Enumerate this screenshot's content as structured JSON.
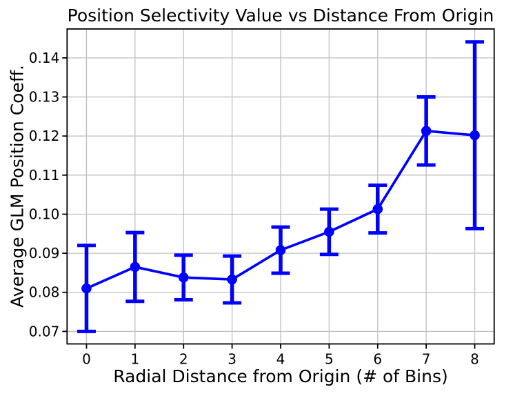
{
  "chart_data": {
    "type": "line",
    "title": "Position Selectivity Value vs Distance From Origin",
    "xlabel": "Radial Distance from Origin (# of Bins)",
    "ylabel": "Average GLM Position Coeff.",
    "x": [
      0,
      1,
      2,
      3,
      4,
      5,
      6,
      7,
      8
    ],
    "y": [
      0.081,
      0.0865,
      0.0838,
      0.0833,
      0.0908,
      0.0955,
      0.1013,
      0.1213,
      0.1202
    ],
    "yerr": [
      0.011,
      0.0088,
      0.0057,
      0.006,
      0.0059,
      0.0058,
      0.0061,
      0.0087,
      0.0239
    ],
    "xticks": [
      0,
      1,
      2,
      3,
      4,
      5,
      6,
      7,
      8
    ],
    "yticks": [
      0.07,
      0.08,
      0.09,
      0.1,
      0.11,
      0.12,
      0.13,
      0.14
    ],
    "xlim": [
      -0.4,
      8.4
    ],
    "ylim": [
      0.0668,
      0.1474
    ],
    "grid": true,
    "legend": "none",
    "marker": "o",
    "colors": {
      "line": "#0000ff",
      "marker": "#0000ff",
      "errorbar": "#0000ff",
      "grid": "#c0c0c0",
      "spine": "#000000",
      "background": "#ffffff",
      "text": "#000000"
    }
  }
}
